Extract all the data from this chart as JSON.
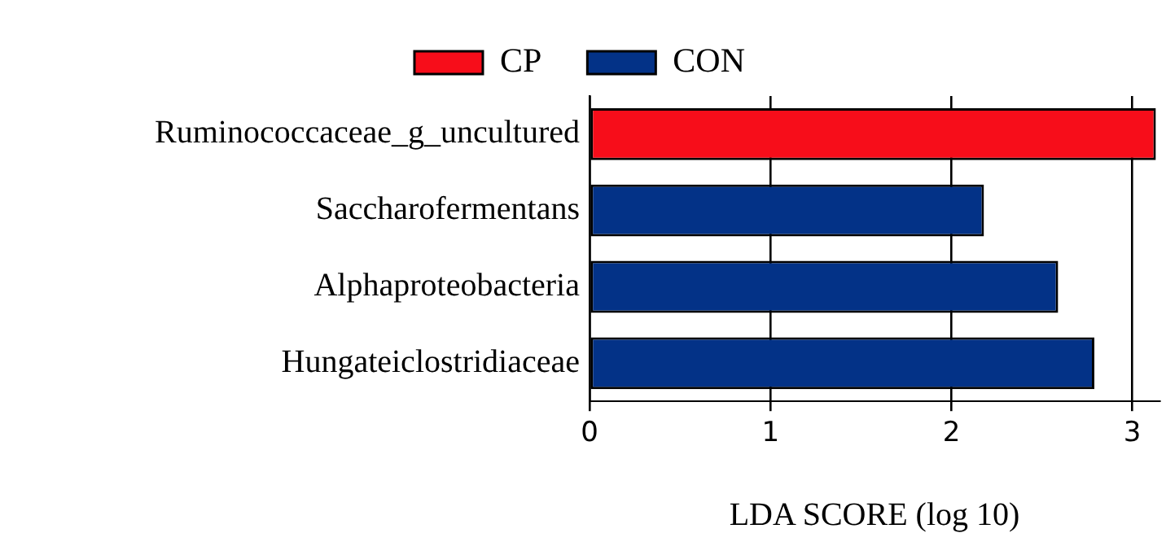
{
  "chart_data": {
    "type": "bar",
    "orientation": "horizontal",
    "xlabel": "LDA SCORE (log 10)",
    "categories": [
      "Ruminococcaceae_g_uncultured",
      "Saccharofermentans",
      "Alphaproteobacteria",
      "Hungateiclostridiaceae"
    ],
    "series": [
      {
        "name": "CP",
        "color": "#f70d1a",
        "values": [
          3.13,
          null,
          null,
          null
        ]
      },
      {
        "name": "CON",
        "color": "#033287",
        "values": [
          null,
          2.18,
          2.59,
          2.79
        ]
      }
    ],
    "xlim": [
      0,
      3.15
    ],
    "xticks": [
      0,
      1,
      2,
      3
    ],
    "grid": "x",
    "legend": "top"
  }
}
